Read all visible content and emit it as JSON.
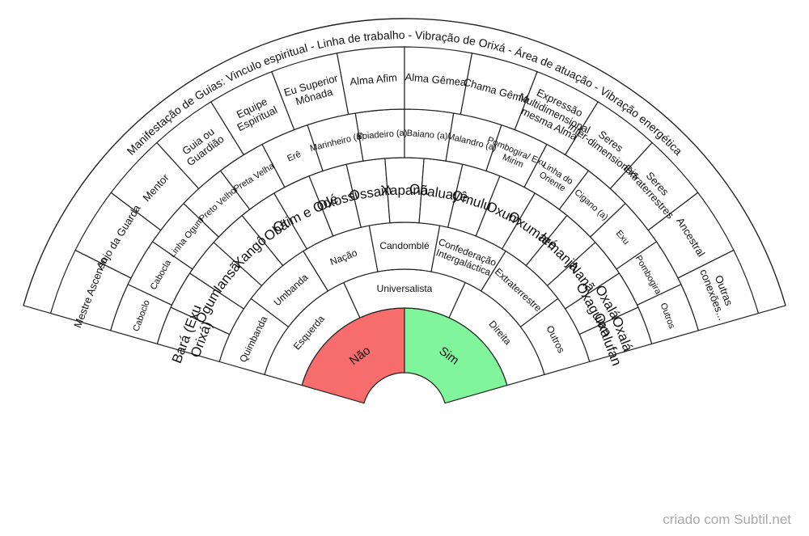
{
  "center": [
    {
      "label": "Não",
      "color": "#f76c6c"
    },
    {
      "label": "Sim",
      "color": "#80f59c"
    }
  ],
  "rings": [
    {
      "name": "ring1",
      "font": 12,
      "wrap": 20,
      "items": [
        "Esquerda",
        "Universalista",
        "Direita"
      ]
    },
    {
      "name": "ring2",
      "font": 12,
      "wrap": 20,
      "items": [
        "Quimbanda",
        "Umbanda",
        "Nação",
        "Candomblé",
        "Confederação Intergaláctica",
        "Extraterrestre",
        "Outros"
      ]
    },
    {
      "name": "ring3",
      "font": 17,
      "wrap": 10,
      "items": [
        "Bará (Exu Orixá)",
        "Ogum",
        "Iansã",
        "Xangô",
        "Obá",
        "Otim e Odé",
        "Oxossi",
        "Ossain",
        "Xapanã",
        "Obaluayê",
        "Omulu",
        "Oxum",
        "Oxumaré",
        "Iemanja",
        "Nanã",
        "Oxalá Oxaguian",
        "Oxalá Oxalufan"
      ]
    },
    {
      "name": "ring4",
      "font": 11,
      "wrap": 14,
      "items": [
        "Caboclo",
        "Cabocla",
        "Linha Ogum",
        "Preto Velho",
        "Preta Velha",
        "Erê",
        "Marinheiro (a)",
        "Boiadeiro (a)",
        "Baiano (a)",
        "Malandro (a)",
        "Pombogira/ Exu Mirim",
        "Linha do Oriente",
        "Cigano (a)",
        "Exu",
        "Pombogira",
        "Outros"
      ]
    },
    {
      "name": "ring5",
      "font": 13,
      "wrap": 14,
      "items": [
        "Mestre Ascenso",
        "Anjo da Guarda",
        "Mentor",
        "Guia ou Guardião",
        "Equipe Espiritual",
        "Eu Superior Mônada",
        "Alma Afim",
        "Alma Gêmea",
        "Chama Gêmia",
        "Expressão Multidimensional mesma Alma",
        "Seres Inter-dimensionais",
        "Seres Extraterrestres",
        "Ancestral",
        "Outras conexões..."
      ]
    }
  ],
  "outer_title": "Manifestação de Guias: Vinculo espiritual - Linha de trabalho - Vibração de Orixá - Área de atuação - Vibração energética",
  "credit": "criado com Subtil.net"
}
